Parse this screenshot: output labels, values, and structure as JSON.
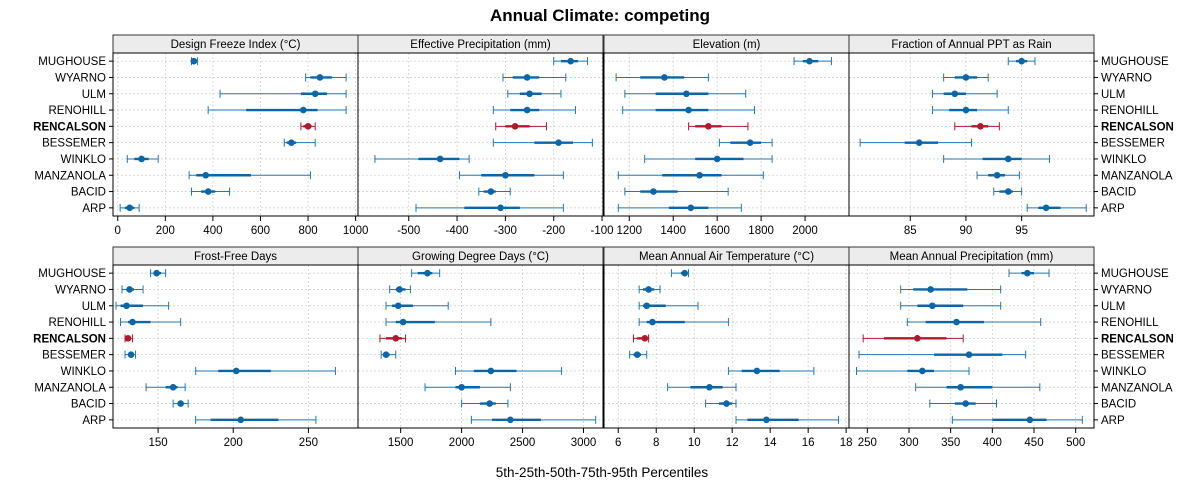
{
  "chart_data": {
    "type": "dot-whisker",
    "title": "Annual Climate: competing",
    "xlabel": "5th-25th-50th-75th-95th Percentiles",
    "sites": [
      "ARP",
      "BACID",
      "MANZANOLA",
      "WINKLO",
      "BESSEMER",
      "RENCALSON",
      "RENOHILL",
      "ULM",
      "WYARNO",
      "MUGHOUSE"
    ],
    "highlight": "RENCALSON",
    "colors": {
      "normal": "#1f78b4",
      "highlight": "#b2182b",
      "normal_dot": "#0a66a8",
      "highlight_dot": "#b2182b"
    },
    "panels": [
      {
        "name": "Design Freeze Index (°C)",
        "xlim": [
          -20,
          1010
        ],
        "ticks": [
          0,
          200,
          400,
          600,
          800,
          1000
        ],
        "tick_labels": [
          "0",
          "200",
          "400",
          "600",
          "800",
          "1000"
        ],
        "data": {
          "ARP": [
            10,
            30,
            50,
            70,
            90
          ],
          "BACID": [
            310,
            350,
            380,
            410,
            470
          ],
          "MANZANOLA": [
            300,
            330,
            370,
            560,
            810
          ],
          "WINKLO": [
            40,
            70,
            100,
            130,
            170
          ],
          "BESSEMER": [
            700,
            710,
            730,
            750,
            830
          ],
          "RENCALSON": [
            770,
            780,
            800,
            815,
            830
          ],
          "RENOHILL": [
            380,
            540,
            780,
            840,
            960
          ],
          "ULM": [
            430,
            770,
            830,
            880,
            960
          ],
          "WYARNO": [
            790,
            810,
            850,
            900,
            960
          ],
          "MUGHOUSE": [
            310,
            315,
            320,
            330,
            335
          ]
        }
      },
      {
        "name": "Effective Precipitation (mm)",
        "xlim": [
          -605,
          -98
        ],
        "ticks": [
          -500,
          -400,
          -300,
          -200,
          -100
        ],
        "tick_labels": [
          "-500",
          "-400",
          "-300",
          "-200",
          "-100"
        ],
        "data": {
          "ARP": [
            -485,
            -385,
            -310,
            -270,
            -180
          ],
          "BACID": [
            -355,
            -345,
            -330,
            -320,
            -290
          ],
          "MANZANOLA": [
            -395,
            -350,
            -300,
            -240,
            -180
          ],
          "WINKLO": [
            -570,
            -480,
            -435,
            -395,
            -375
          ],
          "BESSEMER": [
            -325,
            -240,
            -190,
            -160,
            -120
          ],
          "RENCALSON": [
            -320,
            -300,
            -280,
            -250,
            -215
          ],
          "RENOHILL": [
            -325,
            -290,
            -255,
            -230,
            -155
          ],
          "ULM": [
            -295,
            -270,
            -250,
            -225,
            -185
          ],
          "WYARNO": [
            -305,
            -285,
            -255,
            -230,
            -175
          ],
          "MUGHOUSE": [
            -200,
            -185,
            -165,
            -150,
            -130
          ]
        }
      },
      {
        "name": "Elevation (m)",
        "xlim": [
          1085,
          2200
        ],
        "ticks": [
          1200,
          1400,
          1600,
          1800,
          2000
        ],
        "tick_labels": [
          "1200",
          "1400",
          "1600",
          "1800",
          "2000"
        ],
        "data": {
          "ARP": [
            1150,
            1380,
            1480,
            1560,
            1710
          ],
          "BACID": [
            1180,
            1250,
            1310,
            1420,
            1650
          ],
          "MANZANOLA": [
            1150,
            1350,
            1520,
            1620,
            1810
          ],
          "WINKLO": [
            1270,
            1500,
            1600,
            1720,
            1850
          ],
          "BESSEMER": [
            1610,
            1660,
            1750,
            1800,
            1850
          ],
          "RENCALSON": [
            1470,
            1500,
            1560,
            1620,
            1740
          ],
          "RENOHILL": [
            1170,
            1320,
            1470,
            1560,
            1770
          ],
          "ULM": [
            1180,
            1320,
            1460,
            1560,
            1730
          ],
          "WYARNO": [
            1140,
            1250,
            1360,
            1450,
            1560
          ],
          "MUGHOUSE": [
            1950,
            1990,
            2020,
            2060,
            2120
          ]
        }
      },
      {
        "name": "Fraction of Annual PPT as Rain",
        "xlim": [
          79.5,
          101.5
        ],
        "ticks": [
          85,
          90,
          95
        ],
        "tick_labels": [
          "85",
          "90",
          "95"
        ],
        "data": {
          "ARP": [
            95.5,
            96.5,
            97.2,
            98.5,
            100.8
          ],
          "BACID": [
            92.5,
            93.0,
            93.8,
            94.2,
            95.0
          ],
          "MANZANOLA": [
            91.0,
            92.0,
            92.8,
            93.5,
            94.8
          ],
          "WINKLO": [
            88.0,
            91.5,
            93.8,
            95.0,
            97.5
          ],
          "BESSEMER": [
            80.5,
            84.5,
            85.8,
            87.5,
            90.5
          ],
          "RENCALSON": [
            89.0,
            90.5,
            91.3,
            92.0,
            93.0
          ],
          "RENOHILL": [
            87.0,
            88.5,
            90.0,
            91.0,
            93.8
          ],
          "ULM": [
            87.0,
            88.0,
            89.0,
            90.0,
            92.8
          ],
          "WYARNO": [
            88.0,
            89.0,
            90.0,
            91.0,
            92.0
          ],
          "MUGHOUSE": [
            93.8,
            94.5,
            95.0,
            95.5,
            96.2
          ]
        }
      },
      {
        "name": "Frost-Free Days",
        "xlim": [
          120,
          283
        ],
        "ticks": [
          150,
          200,
          250
        ],
        "tick_labels": [
          "150",
          "200",
          "250"
        ],
        "data": {
          "ARP": [
            175,
            185,
            205,
            230,
            255
          ],
          "BACID": [
            160,
            163,
            165,
            167,
            170
          ],
          "MANZANOLA": [
            142,
            155,
            160,
            163,
            168
          ],
          "WINKLO": [
            175,
            190,
            202,
            225,
            268
          ],
          "BESSEMER": [
            128,
            130,
            132,
            133,
            135
          ],
          "RENCALSON": [
            128,
            129,
            130,
            131,
            133
          ],
          "RENOHILL": [
            125,
            130,
            133,
            145,
            165
          ],
          "ULM": [
            122,
            125,
            129,
            140,
            157
          ],
          "WYARNO": [
            126,
            129,
            131,
            134,
            140
          ],
          "MUGHOUSE": [
            145,
            147,
            149,
            152,
            155
          ]
        }
      },
      {
        "name": "Growing Degree Days (°C)",
        "xlim": [
          1150,
          3160
        ],
        "ticks": [
          1500,
          2000,
          2500,
          3000
        ],
        "tick_labels": [
          "1500",
          "2000",
          "2500",
          "3000"
        ],
        "data": {
          "ARP": [
            2080,
            2250,
            2400,
            2650,
            3100
          ],
          "BACID": [
            2000,
            2150,
            2230,
            2280,
            2380
          ],
          "MANZANOLA": [
            1700,
            1950,
            2000,
            2150,
            2400
          ],
          "WINKLO": [
            1950,
            2100,
            2240,
            2450,
            2820
          ],
          "BESSEMER": [
            1340,
            1360,
            1380,
            1410,
            1460
          ],
          "RENCALSON": [
            1330,
            1380,
            1460,
            1510,
            1540
          ],
          "RENOHILL": [
            1380,
            1460,
            1520,
            1780,
            2240
          ],
          "ULM": [
            1380,
            1430,
            1480,
            1600,
            1890
          ],
          "WYARNO": [
            1410,
            1460,
            1490,
            1540,
            1580
          ],
          "MUGHOUSE": [
            1590,
            1640,
            1720,
            1760,
            1820
          ]
        }
      },
      {
        "name": "Mean Annual Air Temperature (°C)",
        "xlim": [
          5.25,
          18.15
        ],
        "ticks": [
          6,
          8,
          10,
          12,
          14,
          16,
          18
        ],
        "tick_labels": [
          "6",
          "8",
          "10",
          "12",
          "14",
          "16",
          "18"
        ],
        "data": {
          "ARP": [
            12.2,
            12.8,
            13.8,
            15.5,
            17.6
          ],
          "BACID": [
            10.6,
            11.3,
            11.7,
            12.0,
            12.2
          ],
          "MANZANOLA": [
            8.6,
            9.8,
            10.8,
            11.5,
            12.2
          ],
          "WINKLO": [
            11.8,
            12.5,
            13.3,
            14.5,
            16.3
          ],
          "BESSEMER": [
            6.6,
            6.8,
            7.0,
            7.2,
            7.5
          ],
          "RENCALSON": [
            6.8,
            7.0,
            7.4,
            7.6,
            7.6
          ],
          "RENOHILL": [
            7.1,
            7.5,
            7.8,
            9.5,
            11.8
          ],
          "ULM": [
            7.1,
            7.3,
            7.5,
            8.5,
            10.2
          ],
          "WYARNO": [
            7.1,
            7.3,
            7.6,
            7.9,
            8.2
          ],
          "MUGHOUSE": [
            8.8,
            9.3,
            9.5,
            9.6,
            9.7
          ]
        }
      },
      {
        "name": "Mean Annual Precipitation (mm)",
        "xlim": [
          228,
          522
        ],
        "ticks": [
          250,
          300,
          350,
          400,
          450,
          500
        ],
        "tick_labels": [
          "250",
          "300",
          "350",
          "400",
          "450",
          "500"
        ],
        "data": {
          "ARP": [
            352,
            400,
            445,
            465,
            508
          ],
          "BACID": [
            325,
            355,
            368,
            380,
            405
          ],
          "MANZANOLA": [
            308,
            345,
            362,
            400,
            457
          ],
          "WINKLO": [
            237,
            298,
            316,
            330,
            372
          ],
          "BESSEMER": [
            240,
            330,
            372,
            412,
            440
          ],
          "RENCALSON": [
            245,
            270,
            310,
            345,
            365
          ],
          "RENOHILL": [
            298,
            320,
            357,
            390,
            458
          ],
          "ULM": [
            290,
            310,
            328,
            365,
            410
          ],
          "WYARNO": [
            290,
            305,
            326,
            370,
            410
          ],
          "MUGHOUSE": [
            420,
            435,
            442,
            450,
            468
          ]
        }
      }
    ]
  }
}
